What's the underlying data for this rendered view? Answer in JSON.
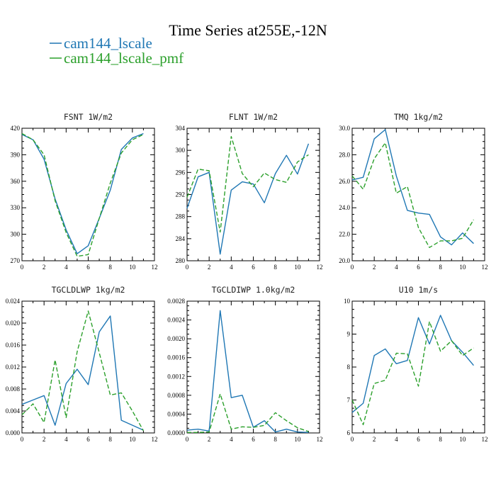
{
  "figure": {
    "title": "Time Series at255E,-12N"
  },
  "chart_data": [
    {
      "type": "line",
      "title": "FSNT   1W/m2",
      "xlim": [
        0,
        12
      ],
      "ylim": [
        270,
        420
      ],
      "xticks": [
        0,
        2,
        4,
        6,
        8,
        10,
        12
      ],
      "yticks": [
        270,
        300,
        330,
        360,
        390,
        420
      ],
      "ytick_labels": [
        "270",
        "300",
        "330",
        "360",
        "390",
        "420"
      ],
      "x": [
        0,
        1,
        2,
        3,
        4,
        5,
        6,
        7,
        8,
        9,
        10,
        11
      ],
      "series": [
        {
          "name": "cam144_lscale",
          "color": "#1f77b4",
          "dash": "",
          "values": [
            413,
            407,
            385,
            340,
            305,
            278,
            287,
            318,
            350,
            396,
            409,
            414
          ]
        },
        {
          "name": "cam144_lscale_pmf",
          "color": "#2ca02c",
          "dash": "6,3",
          "values": [
            414,
            407,
            390,
            338,
            302,
            275,
            277,
            318,
            358,
            392,
            407,
            413
          ]
        }
      ]
    },
    {
      "type": "line",
      "title": "FLNT   1W/m2",
      "xlim": [
        0,
        12
      ],
      "ylim": [
        280,
        304
      ],
      "xticks": [
        0,
        2,
        4,
        6,
        8,
        10,
        12
      ],
      "yticks": [
        280,
        284,
        288,
        292,
        296,
        300,
        304
      ],
      "ytick_labels": [
        "280",
        "284",
        "288",
        "292",
        "296",
        "300",
        "304"
      ],
      "x": [
        0,
        1,
        2,
        3,
        4,
        5,
        6,
        7,
        8,
        9,
        10,
        11
      ],
      "series": [
        {
          "name": "cam144_lscale",
          "color": "#1f77b4",
          "dash": "",
          "values": [
            289.5,
            295.2,
            296.0,
            281.2,
            292.8,
            294.3,
            293.9,
            290.5,
            295.8,
            299.1,
            295.7,
            301.2
          ]
        },
        {
          "name": "cam144_lscale_pmf",
          "color": "#2ca02c",
          "dash": "6,3",
          "values": [
            291.5,
            296.6,
            296.3,
            285.2,
            302.5,
            295.8,
            293.4,
            295.9,
            294.7,
            294.2,
            297.9,
            299.2
          ]
        }
      ]
    },
    {
      "type": "line",
      "title": "TMQ   1kg/m2",
      "xlim": [
        0,
        12
      ],
      "ylim": [
        20,
        30
      ],
      "xticks": [
        0,
        2,
        4,
        6,
        8,
        10,
        12
      ],
      "yticks": [
        20,
        22,
        24,
        26,
        28,
        30
      ],
      "ytick_labels": [
        "20.0",
        "22.0",
        "24.0",
        "26.0",
        "28.0",
        "30.0"
      ],
      "x": [
        0,
        1,
        2,
        3,
        4,
        5,
        6,
        7,
        8,
        9,
        10,
        11
      ],
      "series": [
        {
          "name": "cam144_lscale",
          "color": "#1f77b4",
          "dash": "",
          "values": [
            26.1,
            26.3,
            29.2,
            29.9,
            26.4,
            23.8,
            23.6,
            23.5,
            21.8,
            21.2,
            22.1,
            21.3
          ]
        },
        {
          "name": "cam144_lscale_pmf",
          "color": "#2ca02c",
          "dash": "6,3",
          "values": [
            26.4,
            25.4,
            27.7,
            28.9,
            25.1,
            25.6,
            22.5,
            21.0,
            21.5,
            21.5,
            21.7,
            23.1
          ]
        }
      ]
    },
    {
      "type": "line",
      "title": "TGCLDLWP   1kg/m2",
      "xlim": [
        0,
        12
      ],
      "ylim": [
        0,
        0.024
      ],
      "xticks": [
        0,
        2,
        4,
        6,
        8,
        10,
        12
      ],
      "yticks": [
        0,
        0.004,
        0.008,
        0.012,
        0.016,
        0.02,
        0.024
      ],
      "ytick_labels": [
        "0.000",
        "0.004",
        "0.008",
        "0.012",
        "0.016",
        "0.020",
        "0.024"
      ],
      "x": [
        0,
        1,
        2,
        3,
        4,
        5,
        6,
        7,
        8,
        9,
        10,
        11
      ],
      "series": [
        {
          "name": "cam144_lscale",
          "color": "#1f77b4",
          "dash": "",
          "values": [
            0.0052,
            0.006,
            0.0068,
            0.0014,
            0.009,
            0.0116,
            0.0088,
            0.0184,
            0.0213,
            0.0023,
            0.0014,
            0.0005
          ]
        },
        {
          "name": "cam144_lscale_pmf",
          "color": "#2ca02c",
          "dash": "6,3",
          "values": [
            0.0033,
            0.0053,
            0.0019,
            0.0133,
            0.0028,
            0.0148,
            0.0222,
            0.0146,
            0.0069,
            0.0073,
            0.004,
            0.0004
          ]
        }
      ]
    },
    {
      "type": "line",
      "title": "TGCLDIWP   1.0kg/m2",
      "xlim": [
        0,
        12
      ],
      "ylim": [
        0,
        0.0028
      ],
      "xticks": [
        0,
        2,
        4,
        6,
        8,
        10,
        12
      ],
      "yticks": [
        0,
        0.0004,
        0.0008,
        0.0012,
        0.0016,
        0.002,
        0.0024,
        0.0028
      ],
      "ytick_labels": [
        "0.0000",
        "0.0004",
        "0.0008",
        "0.0012",
        "0.0016",
        "0.0020",
        "0.0024",
        "0.0028"
      ],
      "x": [
        0,
        1,
        2,
        3,
        4,
        5,
        6,
        7,
        8,
        9,
        10,
        11
      ],
      "series": [
        {
          "name": "cam144_lscale",
          "color": "#1f77b4",
          "dash": "",
          "values": [
            6e-05,
            8e-05,
            4e-05,
            0.0026,
            0.00075,
            0.0008,
            0.00012,
            0.00026,
            2e-05,
            8e-05,
            2e-05,
            1e-05
          ]
        },
        {
          "name": "cam144_lscale_pmf",
          "color": "#2ca02c",
          "dash": "6,3",
          "values": [
            1e-05,
            1e-05,
            2e-05,
            0.00083,
            8e-05,
            0.00013,
            0.00012,
            0.00016,
            0.00043,
            0.00026,
            0.00011,
            3e-05
          ]
        }
      ]
    },
    {
      "type": "line",
      "title": "U10   1m/s",
      "xlim": [
        0,
        12
      ],
      "ylim": [
        6,
        10
      ],
      "xticks": [
        0,
        2,
        4,
        6,
        8,
        10,
        12
      ],
      "yticks": [
        6,
        7,
        8,
        9,
        10
      ],
      "ytick_labels": [
        "6",
        "7",
        "8",
        "9",
        "10"
      ],
      "x": [
        0,
        1,
        2,
        3,
        4,
        5,
        6,
        7,
        8,
        9,
        10,
        11
      ],
      "series": [
        {
          "name": "cam144_lscale",
          "color": "#1f77b4",
          "dash": "",
          "values": [
            6.62,
            6.9,
            8.35,
            8.55,
            8.1,
            8.2,
            9.5,
            8.7,
            9.57,
            8.8,
            8.45,
            8.05
          ]
        },
        {
          "name": "cam144_lscale_pmf",
          "color": "#2ca02c",
          "dash": "6,3",
          "values": [
            7.0,
            6.25,
            7.5,
            7.6,
            8.42,
            8.4,
            7.42,
            9.38,
            8.48,
            8.8,
            8.35,
            8.58
          ]
        }
      ]
    }
  ]
}
